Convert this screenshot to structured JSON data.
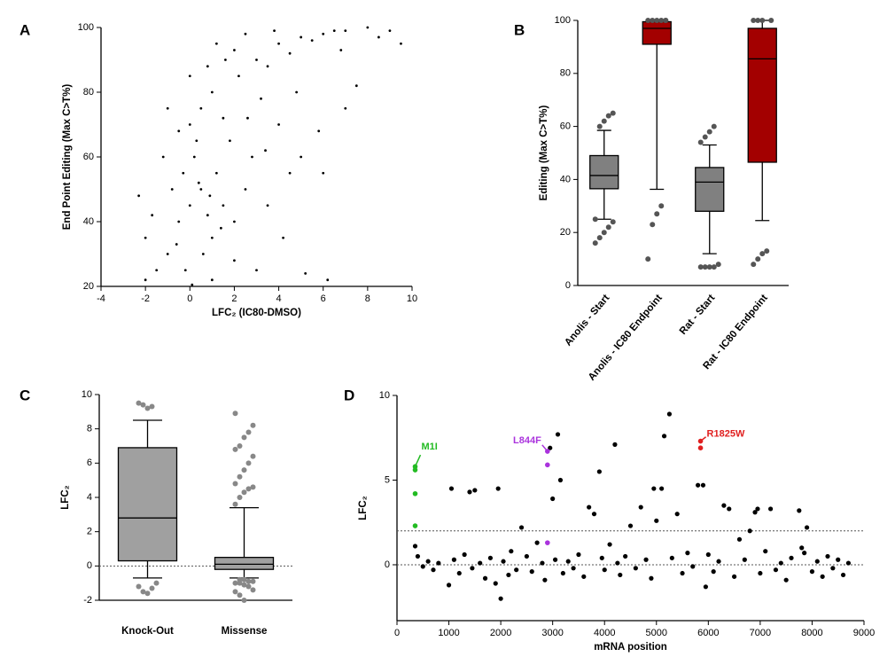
{
  "chart_data": [
    {
      "panel": "A",
      "type": "scatter",
      "xlabel": "LFC₂ (IC80-DMSO)",
      "ylabel": "End Point Editing (Max C>T%)",
      "xlim": [
        -4,
        10
      ],
      "ylim": [
        20,
        100
      ],
      "xticks": [
        -4,
        -2,
        0,
        2,
        4,
        6,
        8,
        10
      ],
      "yticks": [
        20,
        40,
        60,
        80,
        100
      ],
      "series": [
        {
          "color": "#000000",
          "x": [
            0,
            -0.5,
            0.5,
            -1,
            1,
            0.2,
            -0.3,
            0.8,
            -1.5,
            1.5,
            0,
            0.3,
            -0.8,
            1.2,
            0.6,
            -0.2,
            2,
            2.5,
            1.8,
            0.5,
            1,
            1.5,
            2.2,
            3,
            3.5,
            4,
            5,
            6,
            7,
            8,
            9,
            9.5,
            6.5,
            5.5,
            4.5,
            3.2,
            4,
            5,
            6,
            2.8,
            3.5,
            4.2,
            5.2,
            6.2,
            2,
            3,
            -2,
            -2.3,
            -2,
            -1.2,
            -0.5,
            0.8,
            1.2,
            2,
            0,
            -1,
            2.5,
            3.8,
            7.5,
            8.5,
            4.8,
            5.8,
            1,
            0.1,
            -1.7,
            1.4,
            0.4,
            -0.6,
            0.9,
            2.6,
            3.4,
            7,
            4.5,
            6.8,
            1.6
          ],
          "values": [
            45,
            40,
            50,
            30,
            35,
            60,
            55,
            42,
            25,
            45,
            70,
            65,
            50,
            55,
            30,
            25,
            40,
            50,
            65,
            75,
            80,
            72,
            85,
            90,
            88,
            95,
            97,
            98,
            99,
            100,
            99,
            95,
            99,
            96,
            92,
            78,
            70,
            60,
            55,
            60,
            45,
            35,
            24,
            22,
            28,
            25,
            22,
            48,
            35,
            60,
            68,
            88,
            95,
            93,
            85,
            75,
            98,
            99,
            82,
            97,
            80,
            68,
            22,
            20.5,
            42,
            38,
            52,
            33,
            48,
            72,
            62,
            75,
            55,
            93,
            90
          ]
        }
      ]
    },
    {
      "panel": "B",
      "type": "box",
      "ylabel": "Editing (Max C>T%)",
      "ylim": [
        0,
        100
      ],
      "yticks": [
        0,
        20,
        40,
        60,
        80,
        100
      ],
      "categories": [
        "Anolis - Start",
        "Anolis - IC80 Endpoint",
        "Rat - Start",
        "Rat - IC80 Endpoint"
      ],
      "colors": [
        "#808080",
        "#a30000",
        "#808080",
        "#a30000"
      ],
      "boxes": [
        {
          "min": 25,
          "q1": 36.5,
          "median": 41.5,
          "q3": 49,
          "max": 58.5,
          "outliers": [
            16,
            18,
            20,
            22,
            24,
            25,
            60,
            62,
            64,
            65
          ]
        },
        {
          "min": 36.3,
          "q1": 91,
          "median": 97,
          "q3": 99.5,
          "max": 100,
          "outliers": [
            10,
            23,
            27,
            30,
            100,
            100,
            100,
            100,
            100,
            100
          ]
        },
        {
          "min": 12,
          "q1": 28,
          "median": 39,
          "q3": 44.5,
          "max": 53,
          "outliers": [
            7,
            7,
            7,
            7,
            8,
            54,
            56,
            58,
            60
          ]
        },
        {
          "min": 24.5,
          "q1": 46.5,
          "median": 85.5,
          "q3": 97,
          "max": 100,
          "outliers": [
            8,
            10,
            12,
            13,
            100,
            100,
            100,
            100
          ]
        }
      ]
    },
    {
      "panel": "C",
      "type": "box",
      "ylabel": "LFC₂",
      "ylim": [
        -2,
        10
      ],
      "yticks": [
        -2,
        0,
        2,
        4,
        6,
        8,
        10
      ],
      "hlines": [
        0
      ],
      "categories": [
        "Knock-Out",
        "Missense"
      ],
      "colors": [
        "#a0a0a0",
        "#a0a0a0"
      ],
      "boxes": [
        {
          "min": -0.7,
          "q1": 0.3,
          "median": 2.8,
          "q3": 6.9,
          "max": 8.5,
          "outliers": [
            9.5,
            9.4,
            9.2,
            9.3,
            -1.0,
            -1.2,
            -1.5,
            -1.6,
            -1.3
          ]
        },
        {
          "min": -0.7,
          "q1": -0.2,
          "median": 0.1,
          "q3": 0.5,
          "max": 3.4,
          "outliers": [
            3.6,
            4.0,
            4.3,
            4.5,
            4.6,
            4.8,
            5.2,
            5.6,
            6.0,
            6.4,
            6.8,
            7.0,
            7.5,
            7.8,
            8.2,
            8.9,
            -0.8,
            -0.8,
            -0.9,
            -0.9,
            -1.0,
            -1.0,
            -1.1,
            -1.2,
            -1.4,
            -1.5,
            -1.7,
            -2.0
          ]
        }
      ]
    },
    {
      "panel": "D",
      "type": "scatter",
      "xlabel": "mRNA position",
      "ylabel": "LFC₂",
      "xlim": [
        0,
        9000
      ],
      "ylim": [
        -3.3,
        10
      ],
      "xticks": [
        0,
        1000,
        2000,
        3000,
        4000,
        5000,
        6000,
        7000,
        8000,
        9000
      ],
      "yticks": [
        0,
        5,
        10
      ],
      "hlines": [
        0,
        2
      ],
      "series": [
        {
          "color": "#000000",
          "x": [
            350,
            400,
            500,
            600,
            700,
            800,
            1000,
            1050,
            1100,
            1200,
            1300,
            1400,
            1450,
            1500,
            1600,
            1700,
            1800,
            1900,
            1950,
            2000,
            2050,
            2150,
            2200,
            2300,
            2400,
            2500,
            2600,
            2700,
            2800,
            2850,
            2950,
            3000,
            3050,
            3100,
            3150,
            3200,
            3300,
            3400,
            3500,
            3600,
            3700,
            3800,
            3900,
            3950,
            4000,
            4100,
            4200,
            4250,
            4300,
            4400,
            4500,
            4600,
            4700,
            4800,
            4900,
            4950,
            5000,
            5100,
            5150,
            5250,
            5300,
            5400,
            5500,
            5600,
            5700,
            5800,
            5900,
            5950,
            6000,
            6100,
            6200,
            6300,
            6400,
            6500,
            6600,
            6700,
            6800,
            6900,
            6950,
            7000,
            7100,
            7200,
            7300,
            7400,
            7500,
            7600,
            7750,
            7800,
            7850,
            7900,
            8000,
            8100,
            8200,
            8300,
            8400,
            8500,
            8600,
            8700
          ],
          "values": [
            1.1,
            0.5,
            -0.1,
            0.2,
            -0.3,
            0.1,
            -1.2,
            4.5,
            0.3,
            -0.5,
            0.6,
            4.3,
            -0.2,
            4.4,
            0.1,
            -0.8,
            0.4,
            -1.1,
            4.5,
            -2,
            0.2,
            -0.6,
            0.8,
            -0.3,
            2.2,
            0.5,
            -0.4,
            1.3,
            0.1,
            -0.9,
            6.9,
            3.9,
            0.3,
            7.7,
            5,
            -0.5,
            0.2,
            -0.2,
            0.6,
            -0.7,
            3.4,
            3,
            5.5,
            0.4,
            -0.3,
            1.2,
            7.1,
            0.1,
            -0.6,
            0.5,
            2.3,
            -0.2,
            3.4,
            0.3,
            -0.8,
            4.5,
            2.6,
            4.5,
            7.6,
            8.9,
            0.4,
            3,
            -0.5,
            0.7,
            -0.1,
            4.7,
            4.7,
            -1.3,
            0.6,
            -0.4,
            0.2,
            3.5,
            3.3,
            -0.7,
            1.5,
            0.3,
            2,
            3.1,
            3.3,
            -0.5,
            0.8,
            3.3,
            -0.3,
            0.1,
            -0.9,
            0.4,
            3.2,
            1,
            0.7,
            2.2,
            -0.4,
            0.2,
            -0.7,
            0.5,
            -0.2,
            0.3,
            -0.6,
            0.1
          ]
        },
        {
          "name": "M1I",
          "color": "#22bb22",
          "x": [
            350,
            350,
            350,
            350
          ],
          "values": [
            5.8,
            5.6,
            4.2,
            2.3
          ]
        },
        {
          "name": "L844F",
          "color": "#aa33dd",
          "x": [
            2900,
            2900,
            2900
          ],
          "values": [
            6.7,
            5.9,
            1.3
          ]
        },
        {
          "name": "R1825W",
          "color": "#e02020",
          "x": [
            5850,
            5850
          ],
          "values": [
            7.3,
            6.9
          ]
        }
      ]
    }
  ]
}
